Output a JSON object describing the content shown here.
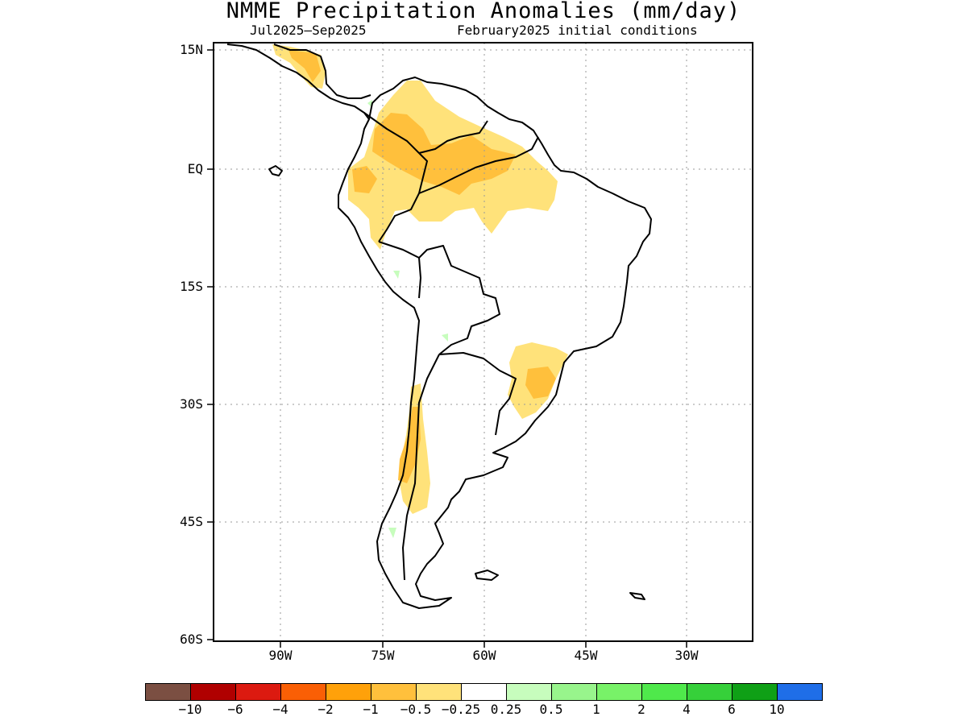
{
  "title": "NMME Precipitation Anomalies (mm/day)",
  "subtitle_left": "Jul2025–Sep2025",
  "subtitle_right": "February2025 initial conditions",
  "map": {
    "region": "South America",
    "lon_range": [
      -98,
      -25
    ],
    "lat_range": [
      -60,
      16
    ],
    "gridlines": "dotted",
    "y_ticks": [
      "15N",
      "EQ",
      "15S",
      "30S",
      "45S",
      "60S"
    ],
    "x_ticks": [
      "90W",
      "75W",
      "60W",
      "45W",
      "30W"
    ]
  },
  "colorbar": {
    "colors": [
      "#7b4f42",
      "#b00000",
      "#dc1a10",
      "#fa5f05",
      "#ffa10a",
      "#ffc03c",
      "#ffe27a",
      "#ffffff",
      "#c7fdbd",
      "#98f58c",
      "#78f268",
      "#4fe94b",
      "#36d03a",
      "#0fa016",
      "#1f6ee8"
    ],
    "labels": [
      "−10",
      "−6",
      "−4",
      "−2",
      "−1",
      "−0.5",
      "−0.25",
      "0.25",
      "0.5",
      "1",
      "2",
      "4",
      "6",
      "10"
    ]
  },
  "chart_data": {
    "type": "heatmap",
    "title": "NMME Precipitation Anomalies (mm/day)",
    "period": "Jul2025–Sep2025",
    "initial_conditions": "February2025 initial conditions",
    "units": "mm/day",
    "contour_levels": [
      -10,
      -6,
      -4,
      -2,
      -1,
      -0.5,
      -0.25,
      0.25,
      0.5,
      1,
      2,
      4,
      6,
      10
    ],
    "dry_anomaly_areas": [
      {
        "category": "-0.5 to -0.25",
        "area": "Colombia, Venezuela and northern Brazil (Amazon)"
      },
      {
        "category": "-1 to -0.5",
        "area": "eastern Colombia and southern Venezuela"
      },
      {
        "category": "-0.5 to -0.25",
        "area": "Ecuador and northern Peru"
      },
      {
        "category": "-1 to -0.5",
        "area": "Central America"
      },
      {
        "category": "-1 to -0.5",
        "area": "southern Brazil (Parana / Santa Catarina)"
      },
      {
        "category": "-1 to -0.5",
        "area": "central Chile / Andes"
      }
    ]
  }
}
